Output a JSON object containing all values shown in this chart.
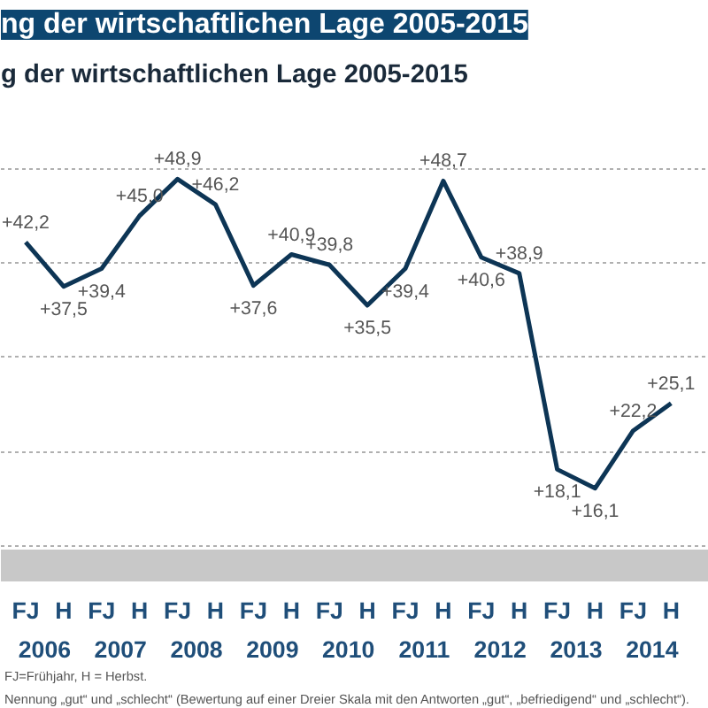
{
  "chart_data": {
    "type": "line",
    "title": "ng der wirtschaftlichen Lage 2005-2015",
    "subtitle": "g der wirtschaftlichen  Lage 2005-2015",
    "categories": [
      "FJ",
      "H",
      "FJ",
      "H",
      "FJ",
      "H",
      "FJ",
      "H",
      "FJ",
      "H",
      "FJ",
      "H",
      "FJ",
      "H",
      "FJ",
      "H",
      "FJ",
      "H"
    ],
    "series": [
      {
        "color": "#0d3555",
        "values": [
          42.2,
          37.5,
          39.4,
          45.0,
          48.9,
          46.2,
          37.6,
          40.9,
          39.8,
          35.5,
          39.4,
          48.7,
          40.6,
          38.9,
          18.1,
          16.1,
          22.2,
          25.1
        ],
        "value_labels": [
          "+42,2",
          "+37,5",
          "+39,4",
          "+45,0",
          "+48,9",
          "+46,2",
          "+37,6",
          "+40,9",
          "+39,8",
          "+35,5",
          "+39,4",
          "+48,7",
          "+40,6",
          "+38,9",
          "+18,1",
          "+16,1",
          "+22,2",
          "+25,1"
        ]
      }
    ],
    "yticks": [
      {
        "value": 10,
        "label": null
      },
      {
        "value": 20,
        "label": null
      },
      {
        "value": 30,
        "label": null
      },
      {
        "value": 40,
        "label": null
      },
      {
        "value": 50,
        "label": null
      }
    ],
    "tick_labels": "x",
    "grid": "y",
    "marker": "none",
    "line_style": "solid",
    "annotations": [
      "2006",
      "2007",
      "2008",
      "2009",
      "2010",
      "2011",
      "2012",
      "2013",
      "2014",
      "FJ=Frühjahr, H = Herbst.",
      "Nennung „gut“ und „schlecht“ (Bewertung auf einer Dreier Skala mit den Antworten „gut“, „befriedigend“ und „schlecht“)."
    ]
  }
}
